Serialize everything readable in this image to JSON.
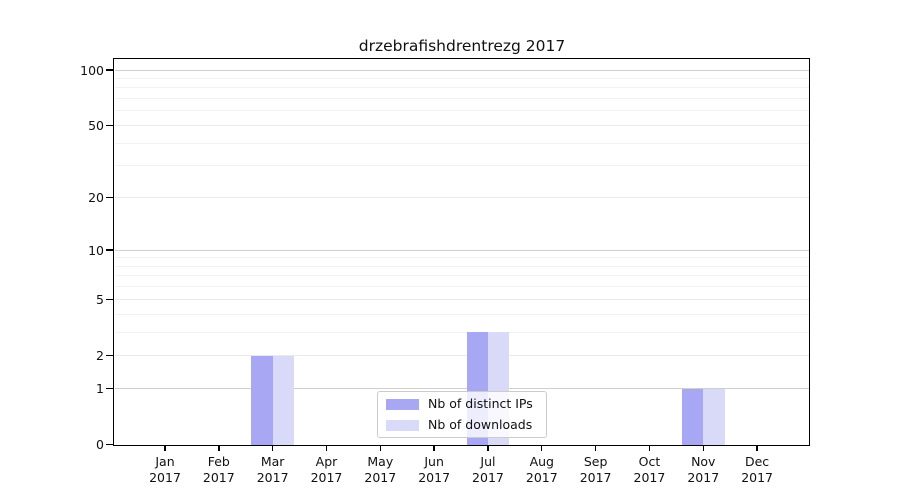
{
  "chart_data": {
    "type": "bar",
    "title": "drzebrafishdrentrezg 2017",
    "x_tick_months": [
      "Jan",
      "Feb",
      "Mar",
      "Apr",
      "May",
      "Jun",
      "Jul",
      "Aug",
      "Sep",
      "Oct",
      "Nov",
      "Dec"
    ],
    "x_tick_year": "2017",
    "y_scale": "log1p",
    "y_ticks": [
      0,
      1,
      2,
      5,
      10,
      20,
      50,
      100
    ],
    "y_minor_ticks": [
      3,
      4,
      6,
      7,
      8,
      9,
      30,
      40,
      60,
      70,
      80,
      90
    ],
    "ylim": [
      0,
      113
    ],
    "grid": true,
    "legend_position": "inside-bottom-center",
    "series": [
      {
        "name": "Nb of distinct IPs",
        "color": "#a7a7f3",
        "values": [
          0,
          0,
          2,
          0,
          0,
          0,
          3,
          0,
          0,
          0,
          1,
          0
        ]
      },
      {
        "name": "Nb of downloads",
        "color": "#d9d9f8",
        "values": [
          0,
          0,
          2,
          0,
          0,
          0,
          3,
          0,
          0,
          0,
          1,
          0
        ]
      }
    ]
  }
}
